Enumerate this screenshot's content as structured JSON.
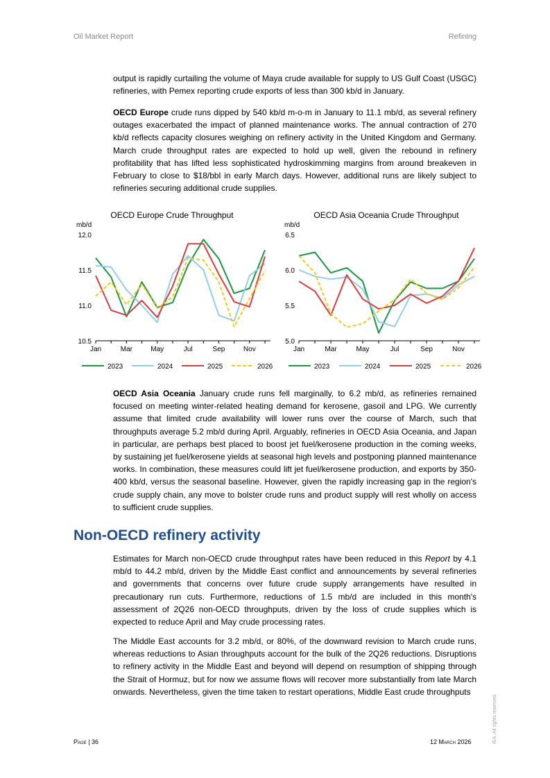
{
  "header": {
    "left": "Oil Market Report",
    "right": "Refining"
  },
  "paragraphs": {
    "p1": "output is rapidly curtailing the volume of Maya crude available for supply to US Gulf Coast (USGC) refineries, with Pemex reporting crude exports of less than 300 kb/d in January.",
    "p2_lead": "OECD Europe",
    "p2": " crude runs dipped by 540 kb/d m-o-m in January to 11.1 mb/d, as several refinery outages exacerbated the impact of planned maintenance works. The annual contraction of 270 kb/d reflects capacity closures weighing on refinery activity in the United Kingdom and Germany. March crude throughput rates are expected to hold up well, given the rebound in refinery profitability that has lifted less sophisticated hydroskimming margins from around breakeven in February to close to $18/bbl in early March days. However, additional runs are likely subject to refineries securing additional crude supplies.",
    "p3_lead": "OECD Asia Oceania",
    "p3": " January crude runs fell marginally, to 6.2 mb/d, as refineries remained focused on meeting winter-related heating demand for kerosene, gasoil and LPG. We currently assume that limited crude availability will lower runs over the course of March, such that throughputs average 5.2 mb/d during April. Arguably, refineries in OECD Asia Oceania, and Japan in particular, are perhaps best placed to boost jet fuel/kerosene production in the coming weeks, by sustaining jet fuel/kerosene yields at seasonal high levels and postponing planned maintenance works. In combination, these measures could lift jet fuel/kerosene production, and exports by 350-400 kb/d, versus the seasonal baseline. However, given the rapidly increasing gap in the region's crude supply chain, any move to bolster crude runs and product supply will rest wholly on access to sufficient crude supplies.",
    "section_title": "Non-OECD refinery activity",
    "p4a": "Estimates for March non-OECD crude throughput rates have been reduced in this ",
    "p4_italic": "Report",
    "p4b": " by 4.1 mb/d to 44.2 mb/d, driven by the Middle East conflict and announcements by several refineries and governments that concerns over future crude supply arrangements have resulted in precautionary run cuts. Furthermore, reductions of 1.5 mb/d are included in this month's assessment of 2Q26 non-OECD throughputs, driven by the loss of crude supplies which is expected to reduce April and May crude processing rates.",
    "p5": "The Middle East accounts for 3.2 mb/d, or 80%, of the downward revision to March crude runs, whereas reductions to Asian throughputs account for the bulk of the 2Q26 reductions. Disruptions to refinery activity in the Middle East and beyond will depend on resumption of shipping through the Strait of Hormuz, but for now we assume flows will recover more substantially from late March onwards. Nevertheless, given the time taken to restart operations, Middle East crude throughputs"
  },
  "footer": {
    "page_prefix": "Page",
    "page_sep": " | ",
    "page_number": "36",
    "date_day": "12 ",
    "date_month": "March",
    "date_year": " 2026",
    "rights": "IEA. All rights reserved."
  },
  "chart_data": [
    {
      "type": "line",
      "title": "OECD Europe Crude Throughput",
      "ylabel": "mb/d",
      "ylim": [
        10.5,
        12.0
      ],
      "yticks": [
        "12.0",
        "11.5",
        "11.0",
        "10.5"
      ],
      "x": [
        "Jan",
        "Feb",
        "Mar",
        "Apr",
        "May",
        "Jun",
        "Jul",
        "Aug",
        "Sep",
        "Oct",
        "Nov",
        "Dec"
      ],
      "xtick_labels": [
        "Jan",
        "Mar",
        "May",
        "Jul",
        "Sep",
        "Nov"
      ],
      "legend": "bottom",
      "series": [
        {
          "name": "2023",
          "color": "#1a9641",
          "dash": false,
          "values": [
            11.67,
            11.4,
            10.84,
            11.33,
            10.97,
            11.04,
            11.57,
            11.93,
            11.66,
            11.17,
            11.24,
            11.78
          ]
        },
        {
          "name": "2024",
          "color": "#92cde8",
          "dash": false,
          "values": [
            11.56,
            11.54,
            11.22,
            11.0,
            10.76,
            11.44,
            11.7,
            11.5,
            10.86,
            10.78,
            11.42,
            11.59
          ]
        },
        {
          "name": "2025",
          "color": "#d43d3d",
          "dash": false,
          "values": [
            11.42,
            10.93,
            10.86,
            11.07,
            10.83,
            11.27,
            11.87,
            11.87,
            11.44,
            11.05,
            10.98,
            11.69
          ]
        },
        {
          "name": "2026",
          "color": "#f5c518",
          "dash": true,
          "values": [
            11.13,
            11.33,
            11.01,
            11.3,
            10.96,
            11.12,
            11.67,
            11.64,
            11.33,
            10.7,
            11.1,
            11.49
          ]
        }
      ]
    },
    {
      "type": "line",
      "title": "OECD Asia Oceania Crude Throughput",
      "ylabel": "mb/d",
      "ylim": [
        5.0,
        6.5
      ],
      "yticks": [
        "6.5",
        "6.0",
        "5.5",
        "5.0"
      ],
      "x": [
        "Jan",
        "Feb",
        "Mar",
        "Apr",
        "May",
        "Jun",
        "Jul",
        "Aug",
        "Sep",
        "Oct",
        "Nov",
        "Dec"
      ],
      "xtick_labels": [
        "Jan",
        "Mar",
        "May",
        "Jul",
        "Sep",
        "Nov"
      ],
      "legend": "bottom",
      "series": [
        {
          "name": "2023",
          "color": "#1a9641",
          "dash": false,
          "values": [
            6.2,
            6.25,
            5.96,
            6.03,
            5.84,
            5.11,
            5.57,
            5.83,
            5.74,
            5.74,
            5.84,
            6.16
          ]
        },
        {
          "name": "2024",
          "color": "#92cde8",
          "dash": false,
          "values": [
            6.0,
            5.91,
            5.87,
            5.9,
            5.73,
            5.27,
            5.2,
            5.64,
            5.66,
            5.6,
            5.79,
            5.91
          ]
        },
        {
          "name": "2025",
          "color": "#d43d3d",
          "dash": false,
          "values": [
            5.84,
            5.7,
            5.36,
            5.93,
            5.59,
            5.45,
            5.5,
            5.66,
            5.53,
            5.63,
            5.84,
            6.31
          ]
        },
        {
          "name": "2026",
          "color": "#f5c518",
          "dash": true,
          "values": [
            6.2,
            5.96,
            5.38,
            5.19,
            5.24,
            5.42,
            5.58,
            5.87,
            5.67,
            5.58,
            5.75,
            6.04
          ]
        }
      ]
    }
  ]
}
